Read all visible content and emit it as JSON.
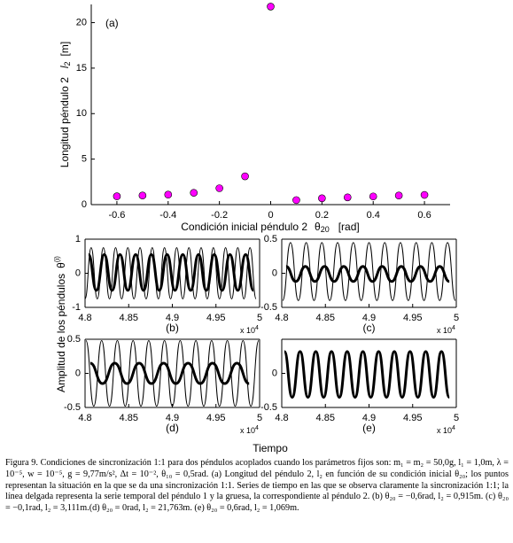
{
  "chart_data": [
    {
      "type": "scatter",
      "panel": "(a)",
      "ylabel": [
        "Longitud péndulo 2",
        "l",
        "2",
        "[m]"
      ],
      "xlabel": [
        "Condición inicial péndulo 2",
        "θ",
        "20",
        "[rad]"
      ],
      "x": [
        -0.6,
        -0.5,
        -0.4,
        -0.3,
        -0.2,
        -0.1,
        0,
        0.1,
        0.2,
        0.3,
        0.4,
        0.5,
        0.6
      ],
      "values": [
        0.915,
        1.0,
        1.1,
        1.3,
        1.8,
        3.111,
        21.763,
        0.5,
        0.7,
        0.8,
        0.9,
        1.0,
        1.069
      ],
      "color": "#ff00ff",
      "xlim": [
        -0.7,
        0.7
      ],
      "xticks": [
        -0.6,
        -0.4,
        -0.2,
        0,
        0.2,
        0.4,
        0.6
      ],
      "ylim": [
        0,
        22
      ],
      "yticks": [
        0,
        5,
        10,
        15,
        20
      ]
    },
    {
      "type": "line",
      "panel": "(b)",
      "multiplier": [
        "x 10",
        "4"
      ],
      "xlim": [
        4.8,
        5
      ],
      "xticks": [
        4.8,
        4.85,
        4.9,
        4.95,
        5
      ],
      "ylim": [
        -1,
        1
      ],
      "yticks": [
        -1,
        0,
        1
      ],
      "series": [
        {
          "color": "#000000",
          "linewidth": 3,
          "x": [
            4.804,
            4.813,
            4.822,
            4.831,
            4.84,
            4.849,
            4.858,
            4.867,
            4.876,
            4.885,
            4.894,
            4.903,
            4.912,
            4.921,
            4.93,
            4.939,
            4.948,
            4.957,
            4.966,
            4.975,
            4.984,
            4.993
          ],
          "values": [
            0.55,
            -0.5,
            0.55,
            -0.5,
            0.55,
            -0.5,
            0.55,
            -0.5,
            0.55,
            -0.5,
            0.55,
            -0.5,
            0.55,
            -0.5,
            0.55,
            -0.5,
            0.55,
            -0.5,
            0.55,
            -0.5,
            0.55,
            -0.5
          ]
        },
        {
          "color": "#000000",
          "linewidth": 1,
          "x": [
            4.8,
            4.807,
            4.814,
            4.821,
            4.828,
            4.835,
            4.842,
            4.849,
            4.856,
            4.863,
            4.87,
            4.877,
            4.884,
            4.891,
            4.898,
            4.905,
            4.912,
            4.919,
            4.926,
            4.933,
            4.94,
            4.947,
            4.954,
            4.961,
            4.968,
            4.975,
            4.982,
            4.989,
            4.996
          ],
          "values": [
            -0.75,
            0.75,
            -0.75,
            0.75,
            -0.75,
            0.75,
            -0.75,
            0.75,
            -0.75,
            0.75,
            -0.75,
            0.75,
            -0.75,
            0.75,
            -0.75,
            0.75,
            -0.75,
            0.75,
            -0.75,
            0.75,
            -0.75,
            0.75,
            -0.75,
            0.75,
            -0.75,
            0.75,
            -0.75,
            0.75,
            -0.75
          ]
        }
      ]
    },
    {
      "type": "line",
      "panel": "(c)",
      "multiplier": [
        "x 10",
        "4"
      ],
      "xlim": [
        4.8,
        5
      ],
      "xticks": [
        4.8,
        4.85,
        4.9,
        4.95,
        5
      ],
      "ylim": [
        -0.5,
        0.5
      ],
      "yticks": [
        -0.5,
        0,
        0.5
      ],
      "series": [
        {
          "color": "#000000",
          "linewidth": 3,
          "x": [
            4.805,
            4.816,
            4.827,
            4.838,
            4.849,
            4.86,
            4.871,
            4.882,
            4.893,
            4.904,
            4.915,
            4.926,
            4.937,
            4.948,
            4.959,
            4.97,
            4.981,
            4.992
          ],
          "values": [
            0.1,
            -0.12,
            0.1,
            -0.12,
            0.1,
            -0.12,
            0.1,
            -0.12,
            0.1,
            -0.12,
            0.1,
            -0.12,
            0.1,
            -0.12,
            0.1,
            -0.12,
            0.1,
            -0.12
          ]
        },
        {
          "color": "#000000",
          "linewidth": 1,
          "x": [
            4.801,
            4.81,
            4.819,
            4.828,
            4.837,
            4.846,
            4.855,
            4.864,
            4.873,
            4.882,
            4.891,
            4.9,
            4.909,
            4.918,
            4.927,
            4.936,
            4.945,
            4.954,
            4.963,
            4.972,
            4.981,
            4.99,
            4.999
          ],
          "values": [
            -0.4,
            0.45,
            -0.4,
            0.45,
            -0.4,
            0.45,
            -0.4,
            0.45,
            -0.4,
            0.45,
            -0.4,
            0.45,
            -0.4,
            0.45,
            -0.4,
            0.45,
            -0.4,
            0.45,
            -0.4,
            0.45,
            -0.4,
            0.45,
            -0.4
          ]
        }
      ]
    },
    {
      "type": "line",
      "panel": "(d)",
      "multiplier": [
        "x 10",
        "4"
      ],
      "xlim": [
        4.8,
        5
      ],
      "xticks": [
        4.8,
        4.85,
        4.9,
        4.95,
        5
      ],
      "ylim": [
        -0.5,
        0.5
      ],
      "yticks": [
        -0.5,
        0,
        0.5
      ],
      "series": [
        {
          "color": "#000000",
          "linewidth": 3,
          "x": [
            4.806,
            4.82,
            4.834,
            4.848,
            4.862,
            4.876,
            4.89,
            4.904,
            4.918,
            4.932,
            4.946,
            4.96,
            4.974,
            4.988
          ],
          "values": [
            0.15,
            -0.15,
            0.15,
            -0.15,
            0.15,
            -0.15,
            0.15,
            -0.15,
            0.15,
            -0.15,
            0.15,
            -0.15,
            0.15,
            -0.15
          ]
        },
        {
          "color": "#000000",
          "linewidth": 1,
          "x": [
            4.801,
            4.81,
            4.819,
            4.828,
            4.837,
            4.846,
            4.855,
            4.864,
            4.873,
            4.882,
            4.891,
            4.9,
            4.909,
            4.918,
            4.927,
            4.936,
            4.945,
            4.954,
            4.963,
            4.972,
            4.981,
            4.99,
            4.999
          ],
          "values": [
            0.48,
            -0.48,
            0.48,
            -0.48,
            0.48,
            -0.48,
            0.48,
            -0.48,
            0.48,
            -0.48,
            0.48,
            -0.48,
            0.48,
            -0.48,
            0.48,
            -0.48,
            0.48,
            -0.48,
            0.48,
            -0.48,
            0.48,
            -0.48,
            0.48
          ]
        }
      ]
    },
    {
      "type": "line",
      "panel": "(e)",
      "multiplier": [
        "x 10",
        "4"
      ],
      "xlim": [
        4.8,
        5
      ],
      "xticks": [
        4.8,
        4.85,
        4.9,
        4.95,
        5
      ],
      "ylim": [
        -0.5,
        0.5
      ],
      "yticks": [
        -0.5,
        0
      ],
      "series": [
        {
          "color": "#000000",
          "linewidth": 3,
          "x": [
            4.803,
            4.812,
            4.821,
            4.83,
            4.839,
            4.848,
            4.857,
            4.866,
            4.875,
            4.884,
            4.893,
            4.902,
            4.911,
            4.92,
            4.929,
            4.938,
            4.947,
            4.956,
            4.965,
            4.974,
            4.983,
            4.992
          ],
          "values": [
            0.32,
            -0.35,
            0.32,
            -0.35,
            0.32,
            -0.35,
            0.32,
            -0.35,
            0.32,
            -0.35,
            0.32,
            -0.35,
            0.32,
            -0.35,
            0.32,
            -0.35,
            0.32,
            -0.35,
            0.32,
            -0.35,
            0.32,
            -0.35
          ]
        },
        {
          "color": "#000000",
          "linewidth": 1,
          "x": [
            4.803,
            4.812,
            4.821,
            4.83,
            4.839,
            4.848,
            4.857,
            4.866,
            4.875,
            4.884,
            4.893,
            4.902,
            4.911,
            4.92,
            4.929,
            4.938,
            4.947,
            4.956,
            4.965,
            4.974,
            4.983,
            4.992
          ],
          "values": [
            0.32,
            -0.35,
            0.32,
            -0.35,
            0.32,
            -0.35,
            0.32,
            -0.35,
            0.32,
            -0.35,
            0.32,
            -0.35,
            0.32,
            -0.35,
            0.32,
            -0.35,
            0.32,
            -0.35,
            0.32,
            -0.35,
            0.32,
            -0.35
          ]
        }
      ]
    }
  ],
  "shared_ylabel": [
    "Amplitud de los péndulos",
    "θ",
    "(i)"
  ],
  "shared_xlabel": "Tiempo",
  "caption": "Figura 9. Condiciones de sincronización 1:1 para dos péndulos acoplados cuando los parámetros fijos son: m₁ = m₂ = 50,0g, l₁ = 1,0m, λ = 10⁻⁵, w = 10⁻⁵, g = 9,77m/s², Δt = 10⁻², θ₁₀ = 0,5rad. (a) Longitud del péndulo 2, l₂ en función de su condición inicial θ₂₀; los puntos representan la situación en la que se da una sincronización 1:1. Series de tiempo en las que se observa claramente la sincronización 1:1; la línea delgada representa la serie temporal del péndulo 1 y la gruesa, la correspondiente al péndulo 2. (b) θ₂₀ = −0,6rad, l₂ = 0,915m. (c) θ₂₀ = −0,1rad, l₂ = 3,111m.(d) θ₂₀ = 0rad, l₂ = 21,763m. (e) θ₂₀ = 0,6rad, l₂ = 1,069m."
}
